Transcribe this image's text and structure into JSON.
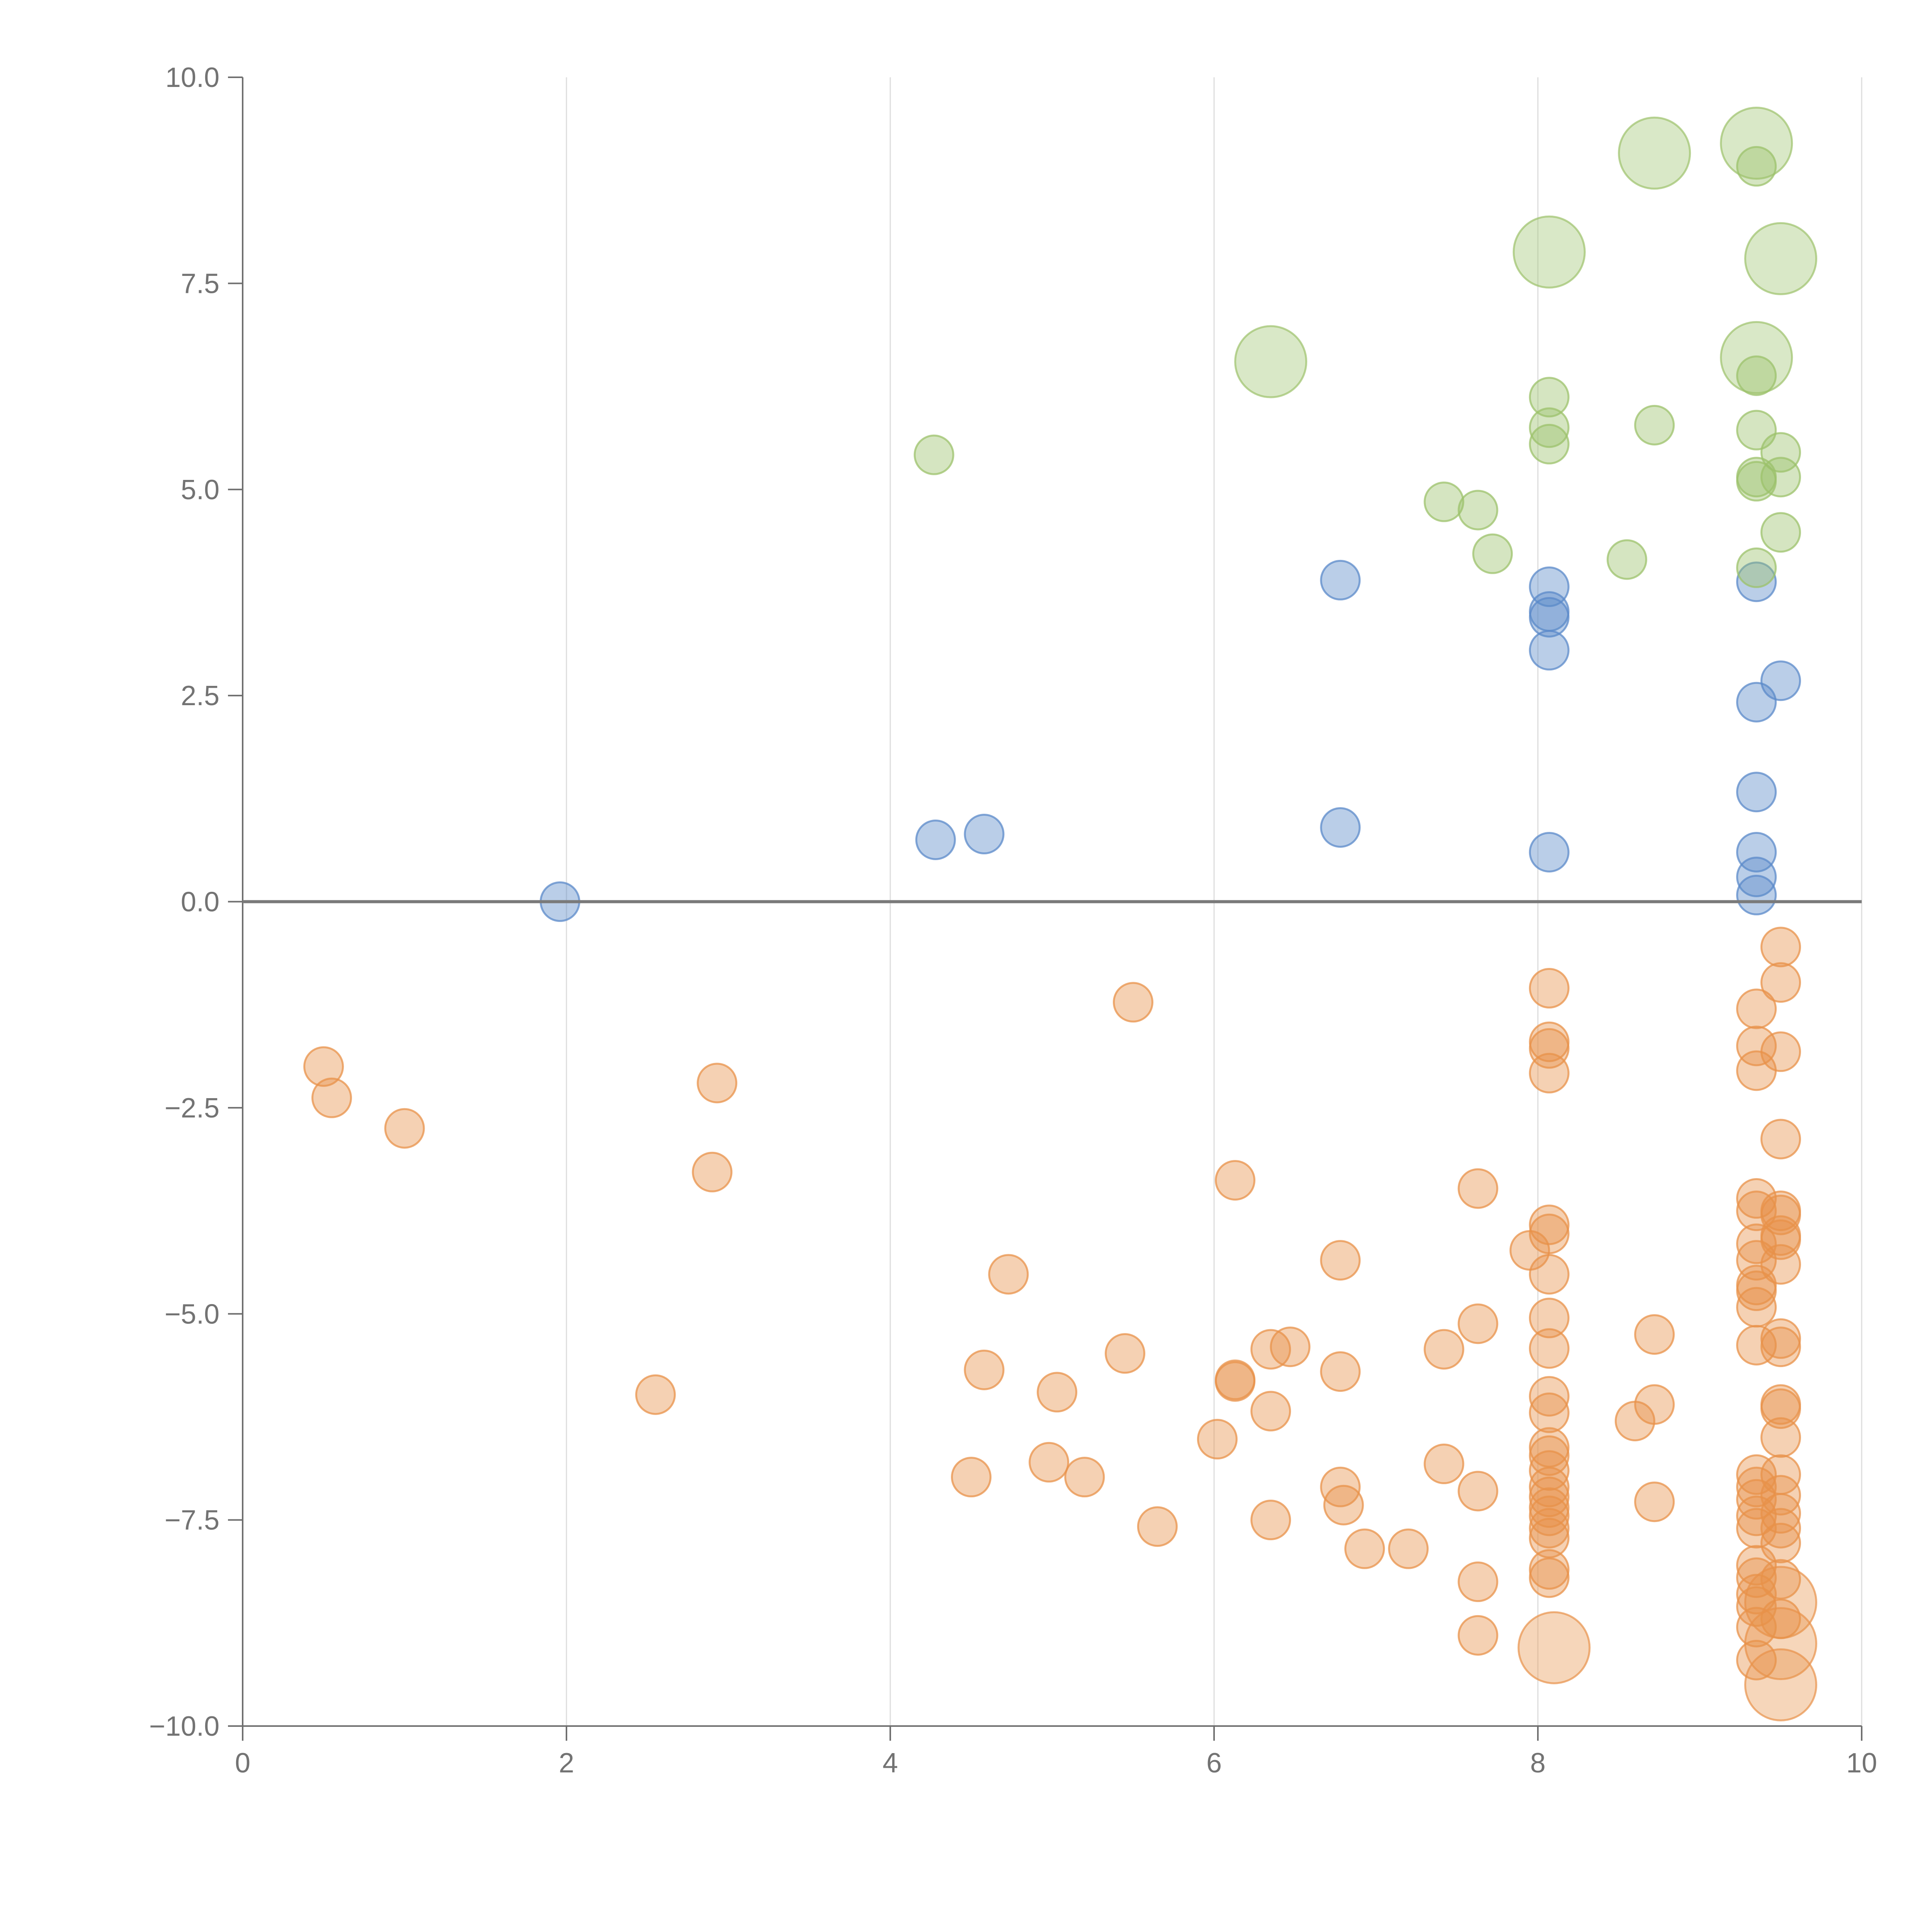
{
  "chart_data": {
    "type": "scatter",
    "title": "",
    "xlabel": "",
    "ylabel": "",
    "xlim": [
      0,
      10
    ],
    "ylim": [
      -10,
      10
    ],
    "x_ticks": [
      0,
      2,
      4,
      6,
      8,
      10
    ],
    "y_ticks": [
      -10,
      -7.5,
      -5,
      -2.5,
      0,
      2.5,
      5,
      7.5,
      10
    ],
    "x_tick_labels": [
      "0",
      "2",
      "4",
      "6",
      "8",
      "10"
    ],
    "y_tick_labels": [
      "−10.0",
      "−7.5",
      "−5.0",
      "−2.5",
      "0.0",
      "2.5",
      "5.0",
      "7.5",
      "10.0"
    ],
    "x_grid": true,
    "y_grid": false,
    "zero_line": true,
    "legend": "none",
    "series": [
      {
        "color": "#5b8ac9",
        "points": [
          [
            1.96,
            0.0
          ],
          [
            4.28,
            0.75
          ],
          [
            4.58,
            0.82
          ],
          [
            6.78,
            3.9
          ],
          [
            6.78,
            0.9
          ],
          [
            8.07,
            3.82
          ],
          [
            8.07,
            3.52
          ],
          [
            8.07,
            3.45
          ],
          [
            8.07,
            3.05
          ],
          [
            8.07,
            0.6
          ],
          [
            9.35,
            3.88
          ],
          [
            9.35,
            2.42
          ],
          [
            9.35,
            1.33
          ],
          [
            9.35,
            0.6
          ],
          [
            9.35,
            0.3
          ],
          [
            9.35,
            0.08
          ],
          [
            9.5,
            2.68
          ]
        ]
      },
      {
        "color": "#9cc26b",
        "points": [
          [
            4.27,
            5.42
          ],
          [
            7.42,
            4.85
          ],
          [
            7.63,
            4.75
          ],
          [
            7.72,
            4.22
          ],
          [
            8.07,
            6.12
          ],
          [
            8.07,
            5.75
          ],
          [
            8.07,
            5.55
          ],
          [
            8.55,
            4.15
          ],
          [
            8.72,
            5.78
          ],
          [
            9.35,
            5.72
          ],
          [
            9.35,
            5.15
          ],
          [
            9.35,
            5.1
          ],
          [
            9.35,
            4.05
          ],
          [
            9.5,
            5.45
          ],
          [
            9.5,
            5.15
          ],
          [
            9.5,
            4.48
          ],
          [
            9.35,
            8.92
          ],
          [
            9.35,
            6.38
          ]
        ]
      },
      {
        "color": "#e8924a",
        "points": [
          [
            0.5,
            -2.0
          ],
          [
            0.55,
            -2.38
          ],
          [
            1.0,
            -2.75
          ],
          [
            2.55,
            -5.98
          ],
          [
            2.9,
            -3.28
          ],
          [
            2.93,
            -2.2
          ],
          [
            4.5,
            -6.98
          ],
          [
            4.58,
            -5.68
          ],
          [
            4.73,
            -4.52
          ],
          [
            4.98,
            -6.8
          ],
          [
            5.03,
            -5.95
          ],
          [
            5.2,
            -6.98
          ],
          [
            5.45,
            -5.48
          ],
          [
            5.5,
            -1.22
          ],
          [
            5.65,
            -7.58
          ],
          [
            6.02,
            -6.52
          ],
          [
            6.13,
            -3.38
          ],
          [
            6.13,
            -5.8
          ],
          [
            6.13,
            -5.82
          ],
          [
            6.35,
            -5.43
          ],
          [
            6.35,
            -6.18
          ],
          [
            6.35,
            -7.5
          ],
          [
            6.47,
            -5.4
          ],
          [
            6.78,
            -4.35
          ],
          [
            6.78,
            -5.7
          ],
          [
            6.78,
            -7.1
          ],
          [
            6.8,
            -7.32
          ],
          [
            6.93,
            -7.85
          ],
          [
            7.2,
            -7.85
          ],
          [
            7.42,
            -5.43
          ],
          [
            7.42,
            -6.82
          ],
          [
            7.63,
            -3.48
          ],
          [
            7.63,
            -5.12
          ],
          [
            7.63,
            -7.15
          ],
          [
            7.63,
            -8.25
          ],
          [
            7.63,
            -8.9
          ],
          [
            7.95,
            -4.23
          ],
          [
            8.07,
            -1.05
          ],
          [
            8.07,
            -1.7
          ],
          [
            8.07,
            -1.78
          ],
          [
            8.07,
            -2.08
          ],
          [
            8.07,
            -3.92
          ],
          [
            8.07,
            -4.03
          ],
          [
            8.07,
            -4.52
          ],
          [
            8.07,
            -5.05
          ],
          [
            8.07,
            -5.42
          ],
          [
            8.07,
            -6.0
          ],
          [
            8.07,
            -6.2
          ],
          [
            8.07,
            -6.62
          ],
          [
            8.07,
            -6.72
          ],
          [
            8.07,
            -6.9
          ],
          [
            8.07,
            -7.1
          ],
          [
            8.07,
            -7.22
          ],
          [
            8.07,
            -7.35
          ],
          [
            8.07,
            -7.45
          ],
          [
            8.07,
            -7.6
          ],
          [
            8.07,
            -7.72
          ],
          [
            8.07,
            -8.1
          ],
          [
            8.07,
            -8.2
          ],
          [
            8.6,
            -6.3
          ],
          [
            8.72,
            -6.1
          ],
          [
            8.72,
            -5.25
          ],
          [
            8.72,
            -7.28
          ],
          [
            9.35,
            -1.3
          ],
          [
            9.35,
            -1.75
          ],
          [
            9.35,
            -2.05
          ],
          [
            9.35,
            -3.6
          ],
          [
            9.35,
            -3.75
          ],
          [
            9.35,
            -4.15
          ],
          [
            9.35,
            -4.35
          ],
          [
            9.35,
            -4.65
          ],
          [
            9.35,
            -4.72
          ],
          [
            9.35,
            -4.92
          ],
          [
            9.35,
            -5.38
          ],
          [
            9.35,
            -6.95
          ],
          [
            9.35,
            -7.1
          ],
          [
            9.35,
            -7.25
          ],
          [
            9.35,
            -7.45
          ],
          [
            9.35,
            -7.6
          ],
          [
            9.35,
            -8.05
          ],
          [
            9.35,
            -8.2
          ],
          [
            9.35,
            -8.4
          ],
          [
            9.35,
            -8.55
          ],
          [
            9.35,
            -8.8
          ],
          [
            9.35,
            -9.2
          ],
          [
            9.5,
            -0.55
          ],
          [
            9.5,
            -0.98
          ],
          [
            9.5,
            -1.82
          ],
          [
            9.5,
            -2.88
          ],
          [
            9.5,
            -3.75
          ],
          [
            9.5,
            -3.8
          ],
          [
            9.5,
            -4.05
          ],
          [
            9.5,
            -4.1
          ],
          [
            9.5,
            -4.4
          ],
          [
            9.5,
            -5.3
          ],
          [
            9.5,
            -5.4
          ],
          [
            9.5,
            -6.1
          ],
          [
            9.5,
            -6.15
          ],
          [
            9.5,
            -6.5
          ],
          [
            9.5,
            -6.95
          ],
          [
            9.5,
            -7.2
          ],
          [
            9.5,
            -7.42
          ],
          [
            9.5,
            -7.6
          ],
          [
            9.5,
            -7.78
          ],
          [
            9.5,
            -8.22
          ],
          [
            9.5,
            -8.7
          ]
        ]
      }
    ],
    "large_markers": [
      {
        "color": "#9cc26b",
        "x": 8.72,
        "y": 9.08
      },
      {
        "color": "#9cc26b",
        "x": 9.35,
        "y": 9.2
      },
      {
        "color": "#9cc26b",
        "x": 8.07,
        "y": 7.88
      },
      {
        "color": "#9cc26b",
        "x": 9.5,
        "y": 7.8
      },
      {
        "color": "#9cc26b",
        "x": 6.35,
        "y": 6.55
      },
      {
        "color": "#9cc26b",
        "x": 9.35,
        "y": 6.6
      },
      {
        "color": "#e8924a",
        "x": 8.1,
        "y": -9.05
      },
      {
        "color": "#e8924a",
        "x": 9.5,
        "y": -8.5
      },
      {
        "color": "#e8924a",
        "x": 9.5,
        "y": -9.0
      },
      {
        "color": "#e8924a",
        "x": 9.5,
        "y": -9.5
      }
    ]
  }
}
